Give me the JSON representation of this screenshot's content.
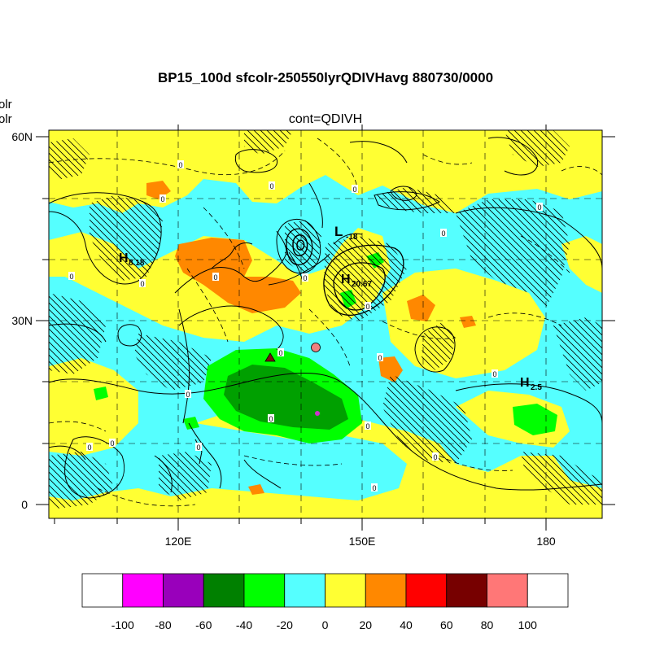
{
  "title": "BP15_100d sfcolr-250550lyrQDIVHavg  880730/0000",
  "subtitle": "cont=QDIVH",
  "left_labels": [
    "olr",
    "olr"
  ],
  "lat_ticks": [
    "60N",
    "30N",
    "0"
  ],
  "lon_ticks": [
    "120E",
    "150E",
    "180"
  ],
  "pressure_centers": [
    {
      "letter": "H",
      "value": "8.18"
    },
    {
      "letter": "L",
      "value": "-18"
    },
    {
      "letter": "H",
      "value": "20.67"
    },
    {
      "letter": "H",
      "value": "2.5"
    }
  ],
  "contour_labels": [
    "0",
    "0",
    "0",
    "0",
    "0",
    "0",
    "0",
    "0",
    "0",
    "0",
    "0",
    "0",
    "0",
    "0",
    "0",
    "0",
    "0",
    "0"
  ],
  "markers": [
    {
      "shape": "triangle",
      "color": "#7a1010"
    },
    {
      "shape": "circle",
      "color": "#f08080"
    },
    {
      "shape": "dot",
      "color": "#cc33cc"
    }
  ],
  "colorbar": {
    "colors": [
      "#ffffff",
      "#ff00ff",
      "#9900bb",
      "#008000",
      "#00ff00",
      "#55ffff",
      "#ffff33",
      "#ff8800",
      "#ff0000",
      "#770000",
      "#ff7777",
      "#ffffff"
    ],
    "labels": [
      "-100",
      "-80",
      "-60",
      "-40",
      "-20",
      "0",
      "20",
      "40",
      "60",
      "80",
      "100"
    ]
  }
}
